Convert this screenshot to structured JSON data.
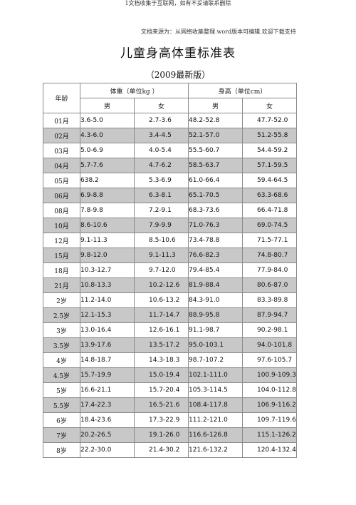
{
  "top_note": "1文档收集于互联网，如有不妥请联系删除",
  "source_line": "文档来源为：从网络收集整理.word版本可编辑.欢迎下载支持",
  "title": "儿童身高体重标准表",
  "subtitle": "（2009最新版）",
  "table": {
    "age_header": "年龄",
    "weight_header": "体重（单位kg ）",
    "height_header": "身高（单位cm）",
    "male": "男",
    "female": "女",
    "rows": [
      {
        "age": "01月",
        "wm": "3.6-5.0",
        "wf": "2.7-3.6",
        "hm": "48.2-52.8",
        "hf": "47.7-52.0",
        "shaded": false
      },
      {
        "age": "02月",
        "wm": "4.3-6.0",
        "wf": "3.4-4.5",
        "hm": "52.1-57.0",
        "hf": "51.2-55.8",
        "shaded": true
      },
      {
        "age": "03月",
        "wm": "5.0-6.9",
        "wf": "4.0-5.4",
        "hm": "55.5-60.7",
        "hf": "54.4-59.2",
        "shaded": false
      },
      {
        "age": "04月",
        "wm": "5.7-7.6",
        "wf": "4.7-6.2",
        "hm": "58.5-63.7",
        "hf": "57.1-59.5",
        "shaded": true
      },
      {
        "age": "05月",
        "wm": "638.2",
        "wf": "5.3-6.9",
        "hm": "61.0-66.4",
        "hf": "59.4-64.5",
        "shaded": false
      },
      {
        "age": "06月",
        "wm": "6.9-8.8",
        "wf": "6.3-8.1",
        "hm": "65.1-70.5",
        "hf": "63.3-68.6",
        "shaded": true
      },
      {
        "age": "08月",
        "wm": "7.8-9.8",
        "wf": "7.2-9.1",
        "hm": "68.3-73.6",
        "hf": "66.4-71.8",
        "shaded": false
      },
      {
        "age": "10月",
        "wm": "8.6-10.6",
        "wf": "7.9-9.9",
        "hm": "71.0-76.3",
        "hf": "69.0-74.5",
        "shaded": true
      },
      {
        "age": "12月",
        "wm": "9.1-11.3",
        "wf": "8.5-10.6",
        "hm": "73.4-78.8",
        "hf": "71.5-77.1",
        "shaded": false
      },
      {
        "age": "15月",
        "wm": "9.8-12.0",
        "wf": "9.1-11.3",
        "hm": "76.6-82.3",
        "hf": "74.8-80.7",
        "shaded": true
      },
      {
        "age": "18月",
        "wm": "10.3-12.7",
        "wf": "9.7-12.0",
        "hm": "79.4-85.4",
        "hf": "77.9-84.0",
        "shaded": false
      },
      {
        "age": "21月",
        "wm": "10.8-13.3",
        "wf": "10.2-12.6",
        "hm": "81.9-88.4",
        "hf": "80.6-87.0",
        "shaded": true
      },
      {
        "age": "2岁",
        "wm": "11.2-14.0",
        "wf": "10.6-13.2",
        "hm": "84.3-91.0",
        "hf": "83.3-89.8",
        "shaded": false
      },
      {
        "age": "2.5岁",
        "wm": "12.1-15.3",
        "wf": "11.7-14.7",
        "hm": "88.9-95.8",
        "hf": "87.9-94.7",
        "shaded": true
      },
      {
        "age": "3岁",
        "wm": "13.0-16.4",
        "wf": "12.6-16.1",
        "hm": "91.1-98.7",
        "hf": "90.2-98.1",
        "shaded": false
      },
      {
        "age": "3.5岁",
        "wm": "13.9-17.6",
        "wf": "13.5-17.2",
        "hm": "95.0-103.1",
        "hf": "94.0-101.8",
        "shaded": true
      },
      {
        "age": "4岁",
        "wm": "14.8-18.7",
        "wf": "14.3-18.3",
        "hm": "98.7-107.2",
        "hf": "97.6-105.7",
        "shaded": false
      },
      {
        "age": "4.5岁",
        "wm": "15.7-19.9",
        "wf": "15.0-19.4",
        "hm": "102.1-111.0",
        "hf": "100.9-109.3",
        "shaded": true
      },
      {
        "age": "5岁",
        "wm": "16.6-21.1",
        "wf": "15.7-20.4",
        "hm": "105.3-114.5",
        "hf": "104.0-112.8",
        "shaded": false
      },
      {
        "age": "5.5岁",
        "wm": "17.4-22.3",
        "wf": "16.5-21.6",
        "hm": "108.4-117.8",
        "hf": "106.9-116.2",
        "shaded": true
      },
      {
        "age": "6岁",
        "wm": "18.4-23.6",
        "wf": "17.3-22.9",
        "hm": "111.2-121.0",
        "hf": "109.7-119.6",
        "shaded": false
      },
      {
        "age": "7岁",
        "wm": "20.2-26.5",
        "wf": "19.1-26.0",
        "hm": "116.6-126.8",
        "hf": "115.1-126.2",
        "shaded": true
      },
      {
        "age": "8岁",
        "wm": "22.2-30.0",
        "wf": "21.4-30.2",
        "hm": "121.6-132.2",
        "hf": "120.4-132.4",
        "shaded": false
      }
    ]
  }
}
